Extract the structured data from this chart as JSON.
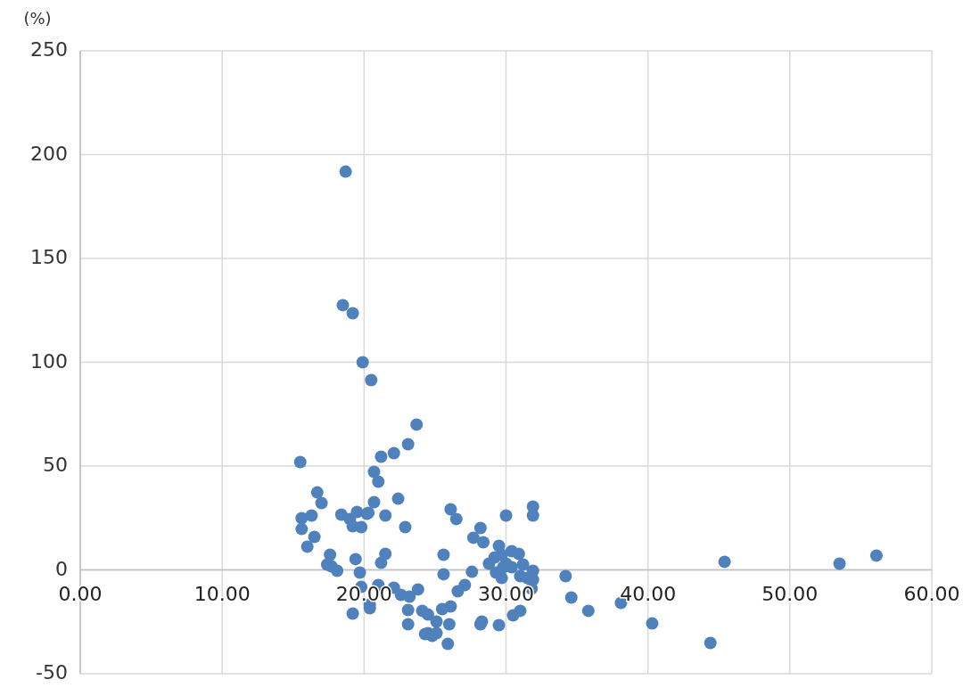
{
  "chart_data": {
    "type": "scatter",
    "ylabel": "(%)",
    "color": "#4f81bd",
    "marker": "circle",
    "grid": true,
    "xlim": [
      0,
      60
    ],
    "xticks": [
      {
        "value": 0,
        "label": "0.00"
      },
      {
        "value": 10,
        "label": "10.00"
      },
      {
        "value": 20,
        "label": "20.00"
      },
      {
        "value": 30,
        "label": "30.00"
      },
      {
        "value": 40,
        "label": "40.00"
      },
      {
        "value": 50,
        "label": "50.00"
      },
      {
        "value": 60,
        "label": "60.00"
      }
    ],
    "ylim": [
      -50,
      250
    ],
    "yticks": [
      -50,
      0,
      50,
      100,
      150,
      200,
      250
    ],
    "x": [
      18.7,
      18.5,
      19.2,
      19.9,
      20.5,
      23.7,
      23.1,
      22.1,
      21.2,
      15.5,
      20.7,
      21.0,
      22.4,
      16.7,
      26.1,
      31.9,
      17.0,
      20.7,
      16.3,
      15.6,
      18.4,
      20.2,
      19.5,
      20.3,
      19.0,
      22.9,
      26.5,
      28.2,
      19.2,
      19.8,
      15.6,
      16.5,
      16.0,
      27.7,
      28.4,
      30.0,
      31.9,
      21.5,
      21.5,
      17.6,
      21.2,
      17.7,
      18.1,
      19.4,
      19.7,
      17.4,
      19.8,
      21.0,
      22.1,
      23.8,
      25.6,
      25.6,
      27.6,
      28.8,
      29.7,
      29.5,
      29.2,
      30.0,
      30.4,
      30.9,
      30.4,
      31.2,
      29.3,
      29.7,
      31.5,
      31.9,
      31.9,
      34.2,
      34.6,
      35.8,
      38.1,
      31.8,
      29.8,
      31.0,
      27.1,
      26.6,
      26.1,
      25.5,
      25.1,
      24.5,
      24.1,
      22.6,
      23.2,
      23.1,
      23.1,
      24.5,
      24.8,
      24.3,
      25.1,
      25.9,
      26.0,
      28.3,
      28.2,
      29.5,
      30.5,
      31.0,
      19.2,
      20.4,
      20.4,
      44.4,
      40.3,
      45.4,
      53.5,
      56.1
    ],
    "values": [
      191.8,
      127.5,
      123.6,
      100.0,
      91.4,
      70.0,
      60.5,
      56.2,
      54.5,
      51.9,
      47.2,
      42.5,
      34.3,
      37.3,
      29.2,
      30.5,
      32.2,
      32.6,
      26.2,
      24.9,
      26.6,
      27.0,
      27.9,
      27.5,
      24.5,
      20.6,
      24.5,
      20.2,
      21.0,
      20.6,
      19.7,
      15.9,
      11.2,
      15.5,
      13.3,
      26.2,
      26.2,
      26.2,
      7.7,
      7.3,
      3.4,
      1.7,
      -0.4,
      5.2,
      -1.3,
      2.6,
      -8.2,
      -7.3,
      -8.6,
      -9.4,
      7.3,
      -2.1,
      -0.9,
      3.0,
      7.3,
      11.6,
      6.0,
      3.0,
      9.0,
      7.7,
      1.3,
      2.6,
      -1.3,
      -3.9,
      -3.9,
      -0.4,
      -4.7,
      -3.0,
      -13.3,
      -19.7,
      -15.9,
      -9.0,
      1.3,
      -3.0,
      -7.3,
      -10.3,
      -17.6,
      -18.9,
      -24.9,
      -21.5,
      -19.7,
      -12.0,
      -12.9,
      -19.3,
      -26.2,
      -30.5,
      -31.8,
      -30.9,
      -30.5,
      -35.6,
      -26.2,
      -24.9,
      -26.2,
      -26.6,
      -21.9,
      -19.7,
      -21.0,
      -18.5,
      -16.7,
      -35.2,
      -25.8,
      3.9,
      3.0,
      6.9
    ]
  }
}
